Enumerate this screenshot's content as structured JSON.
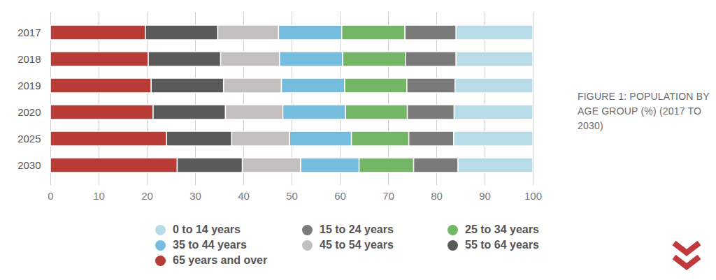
{
  "chart_data": {
    "type": "bar",
    "title": "FIGURE 1: POPULATION BY AGE GROUP (%) (2017 TO 2030)",
    "orientation": "horizontal",
    "stacked": true,
    "grid": true,
    "legend": "bottom",
    "categories": [
      "2017",
      "2018",
      "2019",
      "2020",
      "2025",
      "2030"
    ],
    "series": [
      {
        "name": "0 to 14 years",
        "color": "#b7dce8",
        "values": [
          15.9,
          15.9,
          16.1,
          16.3,
          16.4,
          15.5
        ]
      },
      {
        "name": "15 to 24 years",
        "color": "#7a7a7a",
        "values": [
          10.6,
          10.5,
          10.0,
          9.7,
          9.3,
          9.2
        ]
      },
      {
        "name": "25 to 34 years",
        "color": "#73b665",
        "values": [
          13.1,
          13.0,
          12.9,
          12.8,
          11.9,
          11.3
        ]
      },
      {
        "name": "35 to 44 years",
        "color": "#74bddf",
        "values": [
          13.1,
          13.1,
          13.1,
          13.0,
          12.8,
          12.1
        ]
      },
      {
        "name": "45 to 54 years",
        "color": "#c3bfbf",
        "values": [
          12.6,
          12.2,
          12.0,
          11.9,
          12.0,
          12.1
        ]
      },
      {
        "name": "55 to 64 years",
        "color": "#5a5a5a",
        "values": [
          15.0,
          15.0,
          15.0,
          15.0,
          13.5,
          13.5
        ]
      },
      {
        "name": "65 years and over",
        "color": "#b83b36",
        "values": [
          19.7,
          20.3,
          20.9,
          21.3,
          24.1,
          26.3
        ]
      }
    ],
    "xlim": [
      0,
      100
    ],
    "xticks": [
      0,
      10,
      20,
      30,
      40,
      50,
      60,
      70,
      80,
      90,
      100
    ]
  }
}
